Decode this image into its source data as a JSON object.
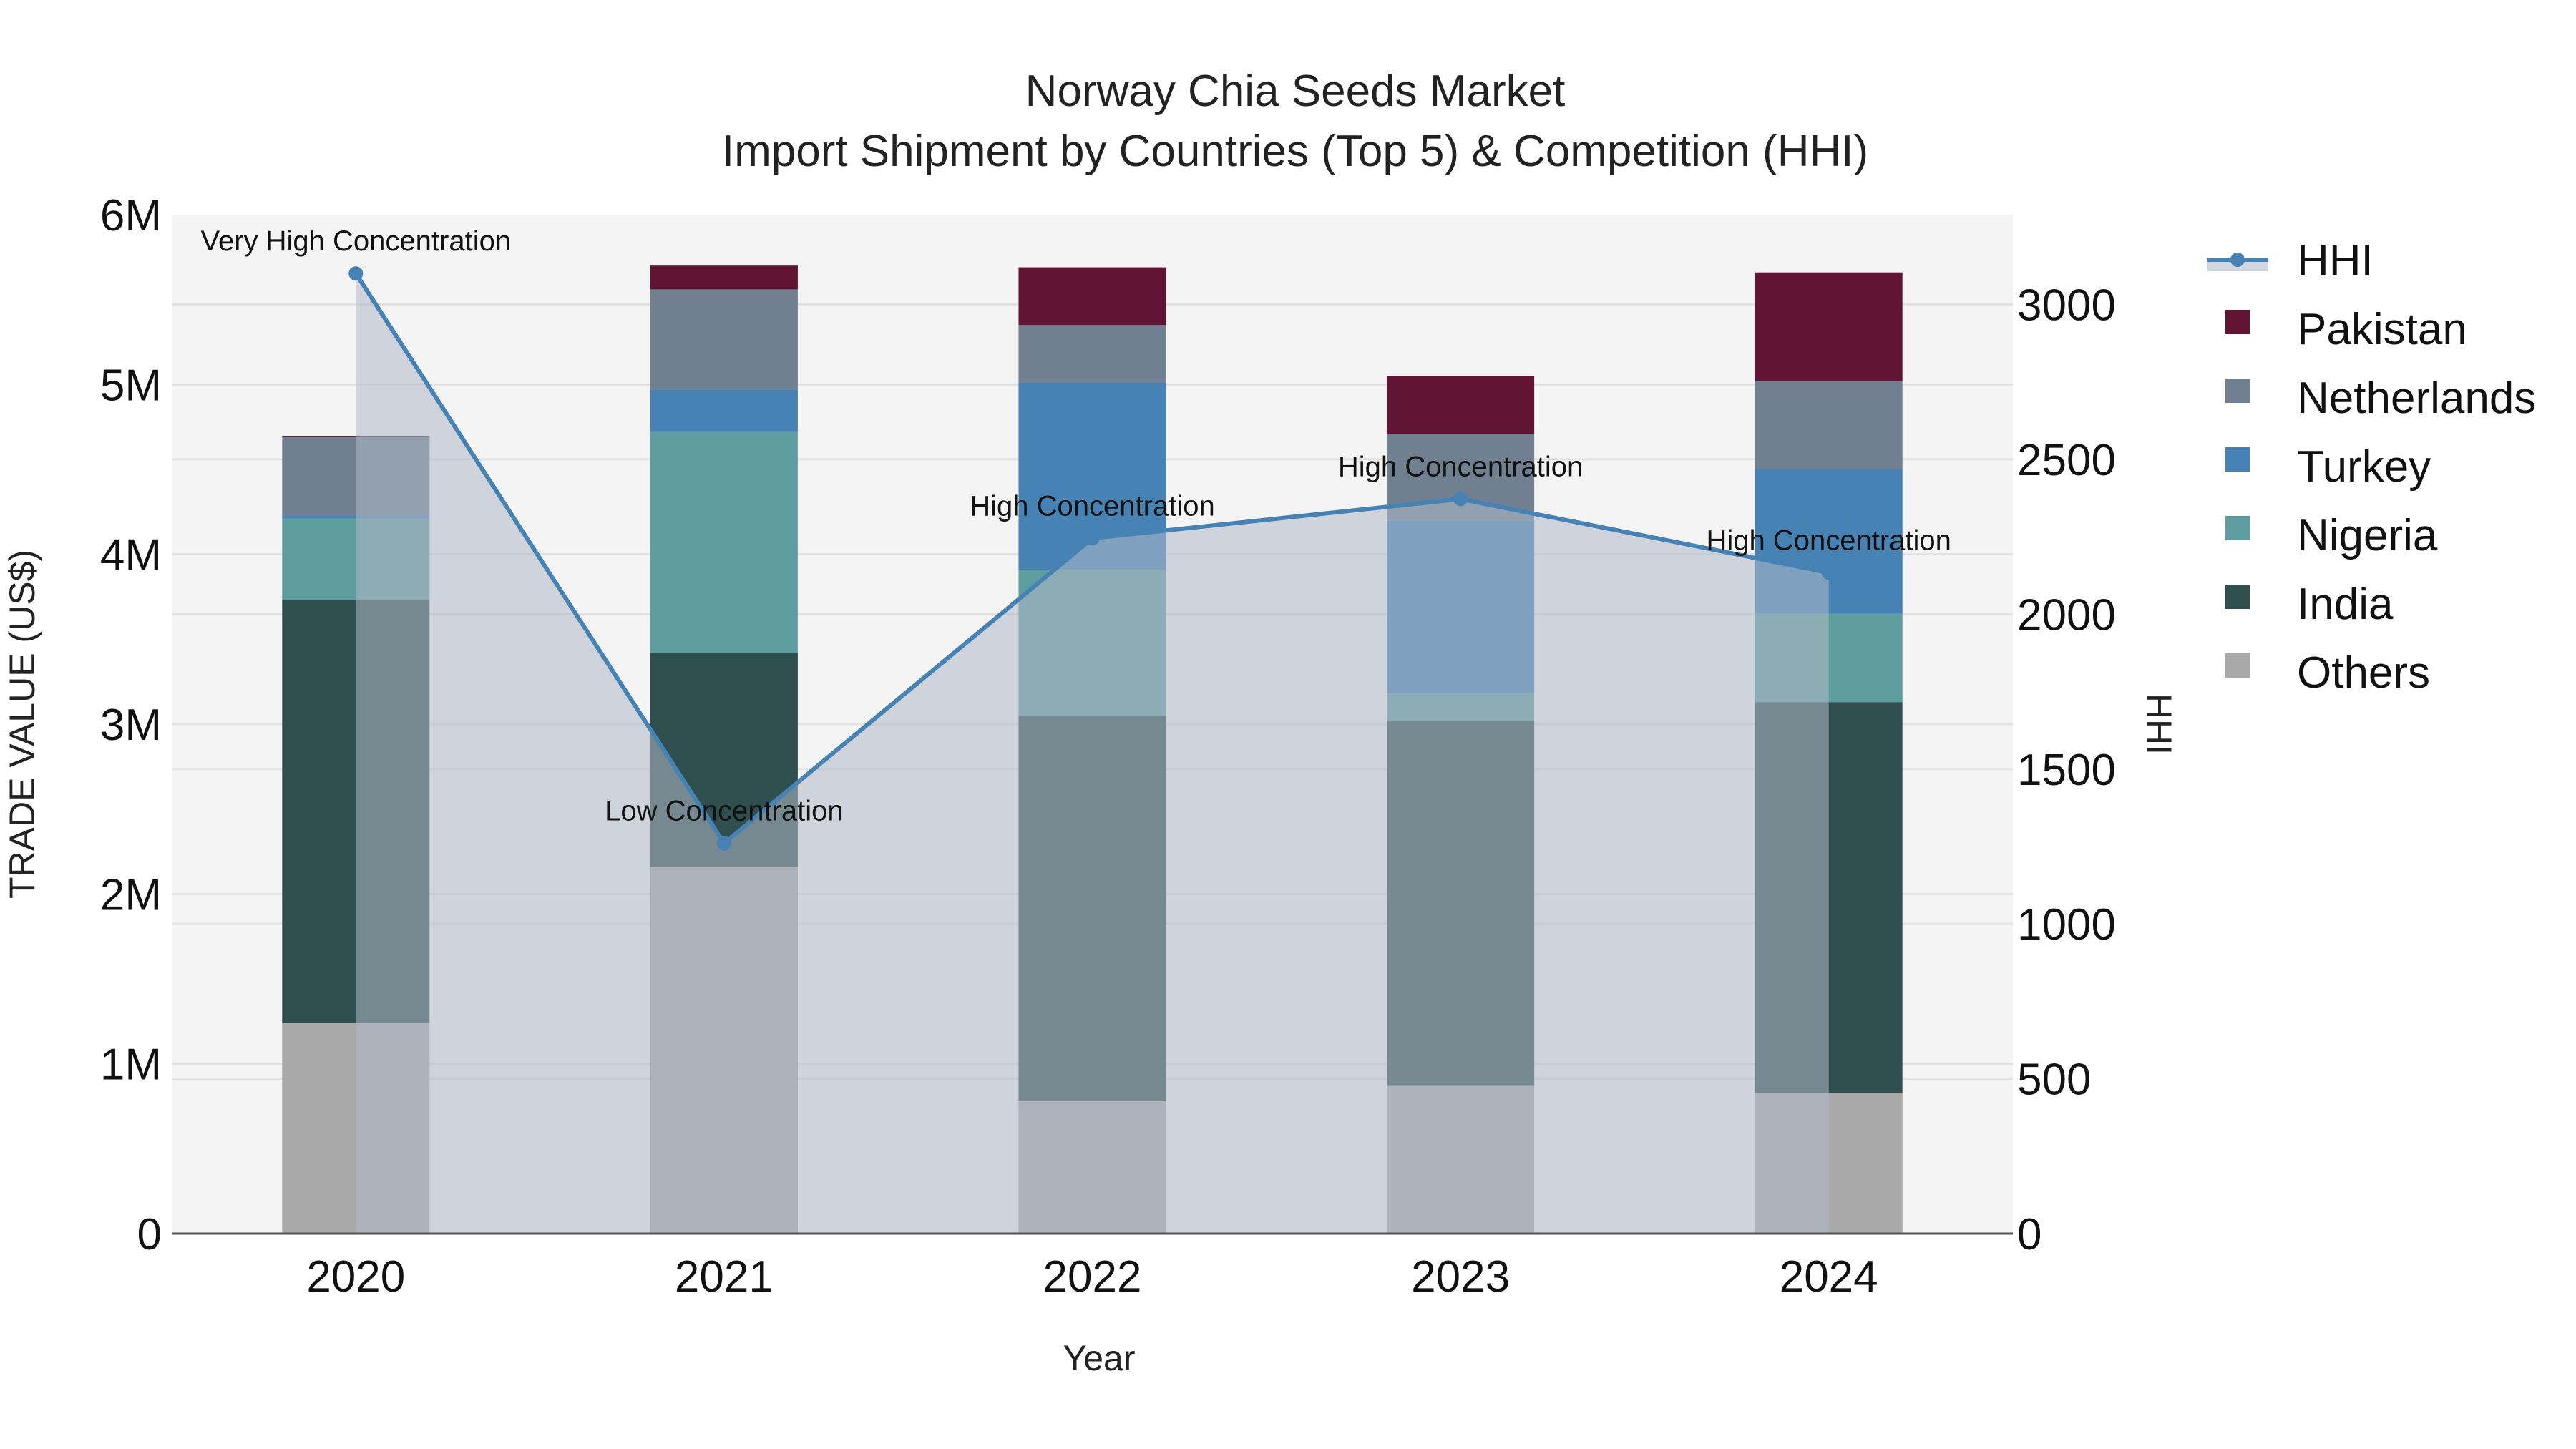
{
  "title": {
    "line1": "Norway Chia Seeds Market",
    "line2": "Import Shipment by Countries (Top 5) & Competition (HHI)"
  },
  "axes": {
    "x_title": "Year",
    "y_title": "TRADE VALUE (US$)",
    "y2_title": "HHI",
    "y_ticks": [
      "0",
      "1M",
      "2M",
      "3M",
      "4M",
      "5M",
      "6M"
    ],
    "y2_ticks": [
      "0",
      "500",
      "1000",
      "1500",
      "2000",
      "2500",
      "3000"
    ]
  },
  "legend": [
    {
      "name": "HHI",
      "type": "line",
      "color": "#4682b4"
    },
    {
      "name": "Pakistan",
      "type": "bar",
      "color": "#611434"
    },
    {
      "name": "Netherlands",
      "type": "bar",
      "color": "#708090"
    },
    {
      "name": "Turkey",
      "type": "bar",
      "color": "#4682b4"
    },
    {
      "name": "Nigeria",
      "type": "bar",
      "color": "#5f9ea0"
    },
    {
      "name": "India",
      "type": "bar",
      "color": "#2f4f4f"
    },
    {
      "name": "Others",
      "type": "bar",
      "color": "#a9a9a9"
    }
  ],
  "annotations": [
    {
      "year": "2020",
      "text": "Very High Concentration"
    },
    {
      "year": "2021",
      "text": "Low Concentration"
    },
    {
      "year": "2022",
      "text": "High Concentration"
    },
    {
      "year": "2023",
      "text": "High Concentration"
    },
    {
      "year": "2024",
      "text": "High Concentration"
    }
  ],
  "chart_data": {
    "type": "bar",
    "subtype": "stacked bar with secondary-axis line/area",
    "title": "Norway Chia Seeds Market — Import Shipment by Countries (Top 5) & Competition (HHI)",
    "xlabel": "Year",
    "ylabel": "TRADE VALUE (US$)",
    "y2label": "HHI",
    "categories": [
      "2020",
      "2021",
      "2022",
      "2023",
      "2024"
    ],
    "ylim": [
      0,
      6000000
    ],
    "y2lim": [
      0,
      3290
    ],
    "grid": true,
    "legend_position": "right",
    "series": [
      {
        "name": "Others",
        "color": "#a9a9a9",
        "values": [
          1240000,
          2160000,
          780000,
          870000,
          830000
        ]
      },
      {
        "name": "India",
        "color": "#2f4f4f",
        "values": [
          2490000,
          1260000,
          2270000,
          2150000,
          2300000
        ]
      },
      {
        "name": "Nigeria",
        "color": "#5f9ea0",
        "values": [
          480000,
          1300000,
          860000,
          160000,
          520000
        ]
      },
      {
        "name": "Turkey",
        "color": "#4682b4",
        "values": [
          20000,
          250000,
          1100000,
          1020000,
          850000
        ]
      },
      {
        "name": "Netherlands",
        "color": "#708090",
        "values": [
          460000,
          590000,
          340000,
          510000,
          520000
        ]
      },
      {
        "name": "Pakistan",
        "color": "#611434",
        "values": [
          5000,
          140000,
          340000,
          340000,
          640000
        ]
      }
    ],
    "line_series": {
      "name": "HHI",
      "axis": "y2",
      "color": "#4682b4",
      "fill": "tozeroy",
      "values": [
        3100,
        1260,
        2245,
        2372,
        2134
      ],
      "labels": [
        "Very High Concentration",
        "Low Concentration",
        "High Concentration",
        "High Concentration",
        "High Concentration"
      ]
    }
  }
}
